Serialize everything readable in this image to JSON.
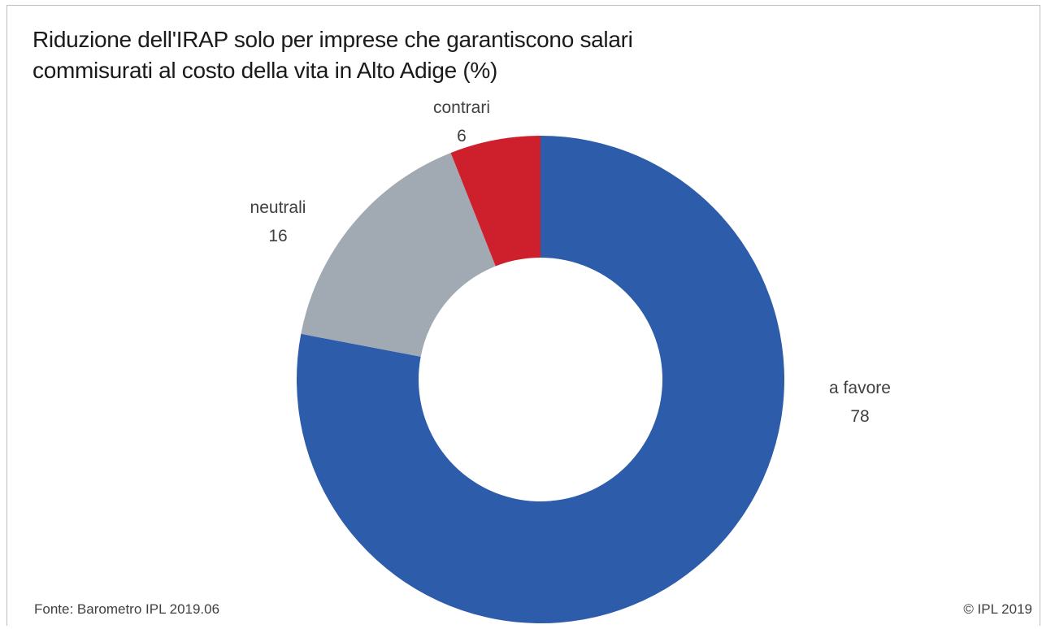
{
  "title_lines": [
    "Riduzione dell'IRAP solo per imprese che garantiscono salari",
    "commisurati al costo della vita in Alto Adige (%)"
  ],
  "chart_data": {
    "type": "pie",
    "variant": "donut",
    "title": "Riduzione dell'IRAP solo per imprese che garantiscono salari commisurati al costo della vita in Alto Adige (%)",
    "categories": [
      "a favore",
      "neutrali",
      "contrari"
    ],
    "values": [
      78,
      16,
      6
    ],
    "colors": [
      "#2d5caa",
      "#a1a9b2",
      "#cd1f2c"
    ],
    "start_angle": "12 o'clock",
    "direction": "clockwise",
    "legend": "none (direct labels)"
  },
  "footer": {
    "source": "Fonte: Barometro IPL 2019.06",
    "copyright": "© IPL 2019"
  }
}
